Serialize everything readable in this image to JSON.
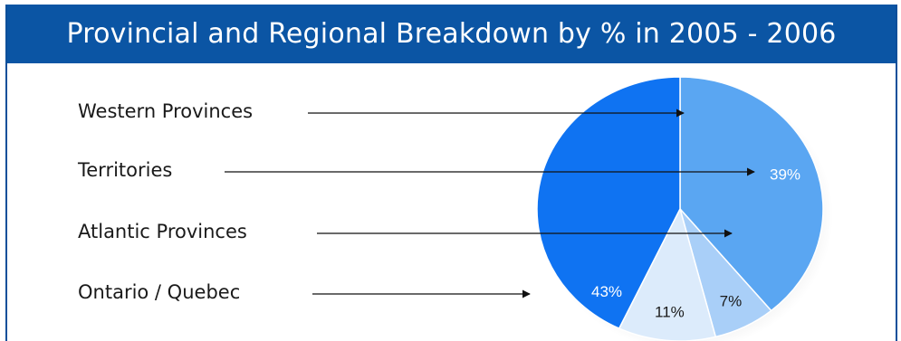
{
  "header": {
    "title": "Provincial and Regional Breakdown by % in 2005 - 2006"
  },
  "chart_data": {
    "type": "pie",
    "title": "Provincial and Regional Breakdown by % in 2005 - 2006",
    "categories": [
      "Western Provinces",
      "Territories",
      "Atlantic Provinces",
      "Ontario / Quebec"
    ],
    "values": [
      39,
      7,
      11,
      43
    ],
    "value_labels": [
      "39%",
      "7%",
      "11%",
      "43%"
    ],
    "slice_colors": [
      "#5aa6f2",
      "#a9cff8",
      "#dcebfb",
      "#0f73f2"
    ],
    "legend_placement": "left, with arrows pointing to slices"
  }
}
